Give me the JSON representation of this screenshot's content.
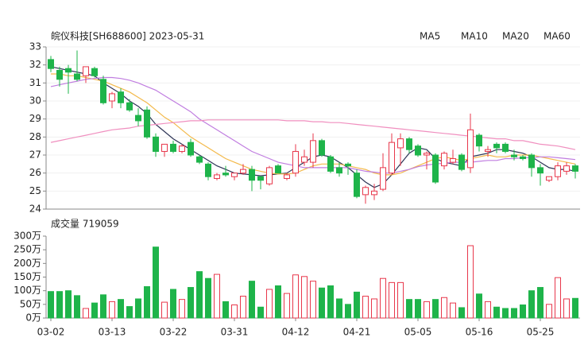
{
  "chart_data": [
    {
      "type": "candlestick",
      "title": "皖仪科技[SH688600] 2023-05-31",
      "categories": [
        "03-02",
        null,
        null,
        null,
        null,
        null,
        null,
        "03-13",
        null,
        null,
        null,
        null,
        null,
        null,
        "03-22",
        null,
        null,
        null,
        null,
        null,
        null,
        "03-31",
        null,
        null,
        null,
        null,
        null,
        null,
        "04-12",
        null,
        null,
        null,
        null,
        null,
        null,
        "04-21",
        null,
        null,
        null,
        null,
        null,
        null,
        "05-05",
        null,
        null,
        null,
        null,
        null,
        null,
        "05-16",
        null,
        null,
        null,
        null,
        null,
        null,
        "05-25",
        null,
        null,
        null,
        null
      ],
      "open": [
        32.3,
        31.7,
        31.8,
        31.5,
        31.4,
        31.8,
        31.2,
        30.0,
        30.5,
        29.9,
        29.2,
        29.5,
        28.0,
        27.2,
        27.6,
        27.2,
        27.7,
        26.9,
        26.5,
        25.7,
        26.0,
        25.8,
        26.0,
        26.2,
        25.8,
        25.4,
        26.4,
        25.7,
        26.0,
        26.6,
        26.6,
        27.8,
        26.9,
        26.3,
        26.5,
        26.0,
        24.8,
        24.8,
        25.1,
        26.0,
        27.4,
        27.9,
        27.5,
        27.0,
        27.0,
        26.4,
        26.6,
        27.0,
        26.3,
        28.1,
        27.2,
        27.6,
        27.6,
        27.0,
        26.9,
        27.0,
        26.3,
        25.6,
        25.8,
        26.1,
        26.4
      ],
      "high": [
        32.5,
        31.9,
        32.0,
        32.8,
        31.9,
        31.9,
        31.4,
        30.5,
        30.7,
        30.1,
        29.6,
        29.7,
        28.2,
        27.6,
        27.8,
        27.6,
        27.9,
        27.0,
        26.6,
        26.0,
        26.4,
        26.0,
        26.5,
        26.4,
        25.8,
        26.4,
        26.5,
        26.0,
        27.6,
        27.3,
        28.2,
        27.9,
        27.0,
        26.6,
        26.6,
        26.2,
        25.3,
        25.4,
        27.1,
        28.2,
        28.2,
        28.0,
        27.6,
        27.2,
        27.1,
        27.2,
        27.3,
        27.1,
        29.3,
        28.2,
        27.5,
        27.7,
        27.7,
        27.3,
        27.0,
        27.1,
        26.5,
        25.8,
        26.6,
        26.6,
        26.5
      ],
      "low": [
        31.6,
        30.8,
        30.4,
        31.1,
        31.0,
        31.3,
        29.8,
        29.6,
        29.6,
        29.4,
        28.6,
        27.9,
        26.9,
        26.9,
        27.1,
        27.1,
        26.9,
        26.5,
        25.6,
        25.6,
        25.8,
        25.6,
        25.9,
        25.0,
        25.1,
        25.3,
        26.0,
        25.6,
        25.8,
        26.4,
        26.3,
        26.9,
        26.0,
        25.8,
        25.9,
        24.6,
        24.3,
        24.5,
        25.0,
        25.9,
        26.4,
        27.1,
        26.9,
        26.2,
        25.4,
        26.2,
        26.5,
        26.1,
        26.0,
        27.2,
        26.9,
        27.1,
        27.1,
        26.7,
        26.7,
        25.8,
        25.3,
        25.5,
        25.6,
        25.9,
        25.7
      ],
      "close": [
        31.8,
        31.2,
        31.6,
        31.2,
        31.9,
        31.4,
        29.9,
        30.4,
        29.9,
        29.5,
        28.9,
        28.0,
        27.2,
        27.6,
        27.2,
        27.5,
        27.0,
        26.6,
        25.8,
        25.9,
        25.9,
        26.0,
        26.2,
        25.6,
        25.6,
        26.3,
        26.0,
        25.9,
        27.2,
        26.9,
        27.8,
        27.0,
        26.1,
        26.0,
        26.4,
        24.7,
        25.2,
        25.0,
        26.3,
        27.7,
        27.9,
        27.3,
        27.0,
        27.1,
        25.5,
        27.1,
        26.8,
        26.2,
        28.4,
        27.5,
        27.3,
        27.4,
        27.2,
        26.9,
        26.8,
        26.3,
        26.0,
        25.8,
        26.4,
        26.4,
        26.1
      ],
      "up_color": "#e8374b",
      "down_color": "#1eb44a",
      "series": [
        {
          "name": "MA5",
          "color": "#2d3456",
          "values": [
            31.9,
            31.8,
            31.7,
            31.6,
            31.5,
            31.4,
            31.0,
            30.7,
            30.4,
            30.0,
            29.7,
            29.3,
            28.7,
            28.3,
            27.9,
            27.6,
            27.3,
            27.0,
            26.7,
            26.4,
            26.2,
            26.0,
            25.95,
            25.9,
            25.85,
            25.9,
            25.95,
            26.0,
            26.3,
            26.6,
            26.9,
            27.0,
            26.9,
            26.6,
            26.3,
            25.9,
            25.5,
            25.2,
            25.4,
            25.9,
            26.5,
            27.1,
            27.4,
            27.3,
            26.8,
            26.6,
            26.5,
            26.4,
            26.9,
            27.0,
            27.1,
            27.3,
            27.3,
            27.2,
            27.1,
            26.9,
            26.6,
            26.3,
            26.2,
            26.2,
            26.1
          ]
        },
        {
          "name": "MA10",
          "color": "#f3b94a",
          "values": [
            31.5,
            31.5,
            31.4,
            31.4,
            31.3,
            31.2,
            31.1,
            30.9,
            30.7,
            30.5,
            30.2,
            29.9,
            29.5,
            29.1,
            28.8,
            28.4,
            28.0,
            27.7,
            27.4,
            27.1,
            26.8,
            26.6,
            26.4,
            26.2,
            26.1,
            26.0,
            25.95,
            25.95,
            26.0,
            26.2,
            26.4,
            26.5,
            26.5,
            26.5,
            26.4,
            26.3,
            26.2,
            26.0,
            25.9,
            25.9,
            26.0,
            26.2,
            26.4,
            26.6,
            26.8,
            26.9,
            26.8,
            26.7,
            26.8,
            26.9,
            27.0,
            26.9,
            26.9,
            27.0,
            27.0,
            27.0,
            26.9,
            26.8,
            26.7,
            26.6,
            26.5
          ]
        },
        {
          "name": "MA20",
          "color": "#c07de0",
          "values": [
            30.8,
            30.9,
            31.0,
            31.1,
            31.2,
            31.25,
            31.3,
            31.3,
            31.25,
            31.15,
            31.0,
            30.8,
            30.6,
            30.3,
            30.0,
            29.7,
            29.4,
            29.0,
            28.7,
            28.4,
            28.1,
            27.8,
            27.5,
            27.2,
            27.0,
            26.8,
            26.6,
            26.5,
            26.4,
            26.3,
            26.3,
            26.3,
            26.3,
            26.3,
            26.3,
            26.2,
            26.1,
            26.05,
            26.0,
            26.0,
            26.1,
            26.2,
            26.35,
            26.45,
            26.5,
            26.55,
            26.6,
            26.6,
            26.6,
            26.65,
            26.7,
            26.7,
            26.8,
            26.8,
            26.85,
            26.85,
            26.9,
            26.9,
            26.85,
            26.8,
            26.75
          ]
        },
        {
          "name": "MA60",
          "color": "#f08fbf",
          "values": [
            27.7,
            27.8,
            27.9,
            28.0,
            28.1,
            28.2,
            28.3,
            28.4,
            28.45,
            28.5,
            28.6,
            28.65,
            28.7,
            28.75,
            28.8,
            28.85,
            28.9,
            28.9,
            28.95,
            28.95,
            28.95,
            28.95,
            28.95,
            28.95,
            28.95,
            28.95,
            28.95,
            28.9,
            28.9,
            28.9,
            28.85,
            28.85,
            28.8,
            28.8,
            28.75,
            28.7,
            28.65,
            28.6,
            28.55,
            28.5,
            28.45,
            28.4,
            28.35,
            28.3,
            28.25,
            28.2,
            28.15,
            28.1,
            28.05,
            28.0,
            27.95,
            27.9,
            27.9,
            27.8,
            27.8,
            27.7,
            27.6,
            27.55,
            27.5,
            27.4,
            27.3
          ]
        }
      ],
      "ylim": [
        24,
        33
      ],
      "yticks": [
        24,
        25,
        26,
        27,
        28,
        29,
        30,
        31,
        32,
        33
      ],
      "grid": true
    },
    {
      "type": "bar",
      "title": "成交量 719059",
      "values": [
        97,
        97,
        100,
        82,
        35,
        55,
        85,
        60,
        68,
        42,
        70,
        115,
        260,
        58,
        105,
        68,
        112,
        170,
        145,
        160,
        60,
        48,
        80,
        135,
        40,
        105,
        118,
        90,
        158,
        152,
        135,
        110,
        118,
        70,
        50,
        95,
        80,
        70,
        145,
        130,
        130,
        68,
        68,
        60,
        68,
        75,
        55,
        38,
        265,
        88,
        60,
        40,
        35,
        35,
        48,
        100,
        112,
        50,
        148,
        70,
        72
      ],
      "ylim": [
        0,
        300
      ],
      "yticks": [
        {
          "value": 0,
          "label": "0万"
        },
        {
          "value": 50,
          "label": "50万"
        },
        {
          "value": 100,
          "label": "100万"
        },
        {
          "value": 150,
          "label": "150万"
        },
        {
          "value": 200,
          "label": "200万"
        },
        {
          "value": 250,
          "label": "250万"
        },
        {
          "value": 300,
          "label": "300万"
        }
      ]
    }
  ]
}
